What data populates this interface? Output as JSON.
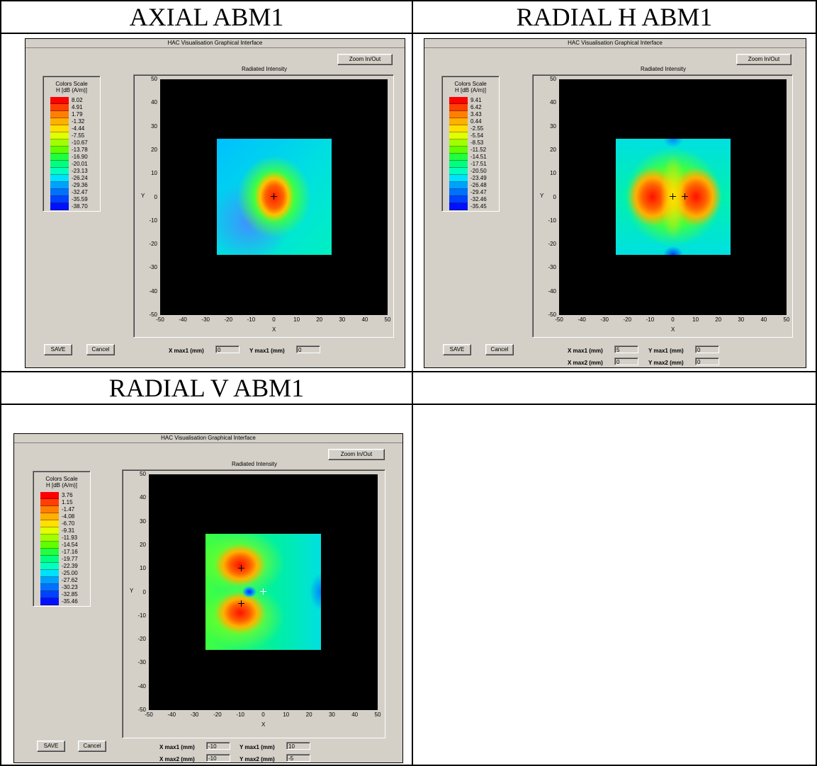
{
  "cells": [
    {
      "title": "AXIAL ABM1",
      "window": {
        "titlebar": "HAC Visualisation Graphical Interface",
        "zoom_label": "Zoom In/Out",
        "plot_caption": "Radiated Intensity",
        "scale_title_1": "Colors Scale",
        "scale_title_2": "H [dB (A/m)]",
        "scale_values": [
          "8.02",
          "4.91",
          "1.79",
          "-1.32",
          "-4.44",
          "-7.55",
          "-10.67",
          "-13.78",
          "-16.90",
          "-20.01",
          "-23.13",
          "-26.24",
          "-29.36",
          "-32.47",
          "-35.59",
          "-38.70"
        ],
        "y_ticks": [
          "50",
          "40",
          "30",
          "20",
          "10",
          "0",
          "-10",
          "-20",
          "-30",
          "-40",
          "-50"
        ],
        "x_ticks": [
          "-50",
          "-40",
          "-30",
          "-20",
          "-10",
          "0",
          "10",
          "20",
          "30",
          "40",
          "50"
        ],
        "x_axis": "X",
        "y_axis": "Y",
        "save_label": "SAVE",
        "cancel_label": "Cancel",
        "fields": [
          {
            "label": "X max1 (mm)",
            "value": "0"
          },
          {
            "label": "Y max1 (mm)",
            "value": "0"
          }
        ]
      }
    },
    {
      "title": "RADIAL H ABM1",
      "window": {
        "titlebar": "HAC Visualisation Graphical Interface",
        "zoom_label": "Zoom In/Out",
        "plot_caption": "Radiated Intensity",
        "scale_title_1": "Colors Scale",
        "scale_title_2": "H [dB (A/m)]",
        "scale_values": [
          "9.41",
          "6.42",
          "3.43",
          "0.44",
          "-2.55",
          "-5.54",
          "-8.53",
          "-11.52",
          "-14.51",
          "-17.51",
          "-20.50",
          "-23.49",
          "-26.48",
          "-29.47",
          "-32.46",
          "-35.45"
        ],
        "y_ticks": [
          "50",
          "40",
          "30",
          "20",
          "10",
          "0",
          "-10",
          "-20",
          "-30",
          "-40",
          "-50"
        ],
        "x_ticks": [
          "-50",
          "-40",
          "-30",
          "-20",
          "-10",
          "0",
          "10",
          "20",
          "30",
          "40",
          "50"
        ],
        "x_axis": "X",
        "y_axis": "Y",
        "save_label": "SAVE",
        "cancel_label": "Cancel",
        "fields": [
          {
            "label": "X max1 (mm)",
            "value": "5"
          },
          {
            "label": "Y max1 (mm)",
            "value": "0"
          },
          {
            "label": "X max2 (mm)",
            "value": "0"
          },
          {
            "label": "Y max2 (mm)",
            "value": "0"
          }
        ]
      }
    },
    {
      "title": "RADIAL V ABM1",
      "window": {
        "titlebar": "HAC Visualisation Graphical Interface",
        "zoom_label": "Zoom In/Out",
        "plot_caption": "Radiated Intensity",
        "scale_title_1": "Colors Scale",
        "scale_title_2": "H [dB (A/m)]",
        "scale_values": [
          "3.76",
          "1.15",
          "-1.47",
          "-4.08",
          "-6.70",
          "-9.31",
          "-11.93",
          "-14.54",
          "-17.16",
          "-19.77",
          "-22.39",
          "-25.00",
          "-27.62",
          "-30.23",
          "-32.85",
          "-35.46"
        ],
        "y_ticks": [
          "50",
          "40",
          "30",
          "20",
          "10",
          "0",
          "-10",
          "-20",
          "-30",
          "-40",
          "-50"
        ],
        "x_ticks": [
          "-50",
          "-40",
          "-30",
          "-20",
          "-10",
          "0",
          "10",
          "20",
          "30",
          "40",
          "50"
        ],
        "x_axis": "X",
        "y_axis": "Y",
        "save_label": "SAVE",
        "cancel_label": "Cancel",
        "fields": [
          {
            "label": "X max1 (mm)",
            "value": "-10"
          },
          {
            "label": "Y max1 (mm)",
            "value": "10"
          },
          {
            "label": "X max2 (mm)",
            "value": "-10"
          },
          {
            "label": "Y max2 (mm)",
            "value": "-5"
          }
        ]
      }
    }
  ],
  "colors": {
    "window_bg": "#d4d0c8",
    "scale": [
      "#ff0000",
      "#ff4000",
      "#ff8000",
      "#ffb000",
      "#ffe000",
      "#e0ff00",
      "#a0ff00",
      "#60ff00",
      "#20ff40",
      "#00ff80",
      "#00ffc0",
      "#00e0ff",
      "#00a0ff",
      "#0070ff",
      "#0040ff",
      "#0010ff"
    ]
  }
}
